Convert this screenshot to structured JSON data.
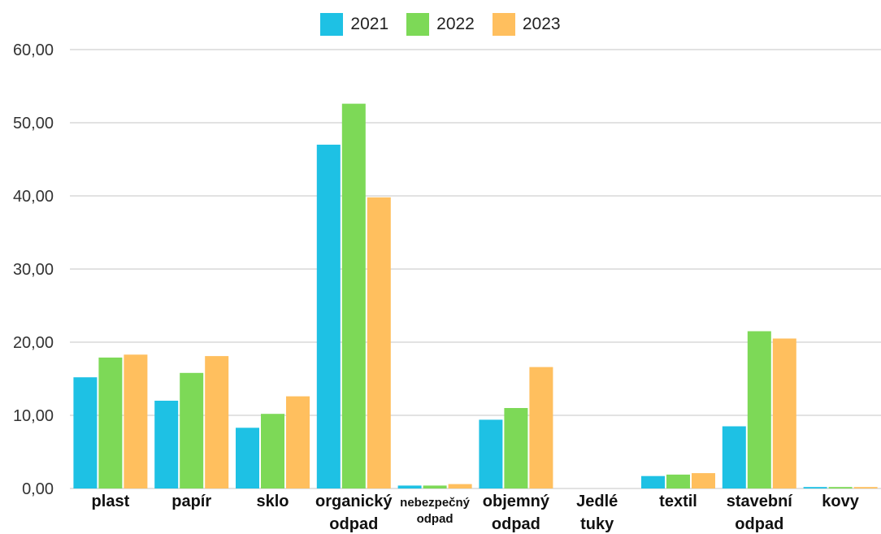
{
  "chart_data": {
    "type": "bar",
    "title": "",
    "xlabel": "",
    "ylabel": "",
    "categories": [
      [
        "plast"
      ],
      [
        "papír"
      ],
      [
        "sklo"
      ],
      [
        "organický",
        "odpad"
      ],
      [
        "nebezpečný",
        "odpad"
      ],
      [
        "objemný",
        "odpad"
      ],
      [
        "Jedlé",
        "tuky"
      ],
      [
        "textil"
      ],
      [
        "stavební",
        "odpad"
      ],
      [
        "kovy"
      ]
    ],
    "series": [
      {
        "name": "2021",
        "color": "#1ec1e4",
        "values": [
          15.2,
          12.0,
          8.3,
          47.0,
          0.4,
          9.4,
          0.0,
          1.7,
          8.5,
          0.2
        ]
      },
      {
        "name": "2022",
        "color": "#7dd957",
        "values": [
          17.9,
          15.8,
          10.2,
          52.6,
          0.4,
          11.0,
          0.0,
          1.9,
          21.5,
          0.2
        ]
      },
      {
        "name": "2023",
        "color": "#ffbf5e",
        "values": [
          18.3,
          18.1,
          12.6,
          39.8,
          0.6,
          16.6,
          0.0,
          2.1,
          20.5,
          0.2
        ]
      }
    ],
    "y_ticks": [
      "0,00",
      "10,00",
      "20,00",
      "30,00",
      "40,00",
      "50,00",
      "60,00"
    ],
    "ylim": [
      0,
      60
    ],
    "grid": true,
    "legend_position": "top-center"
  }
}
